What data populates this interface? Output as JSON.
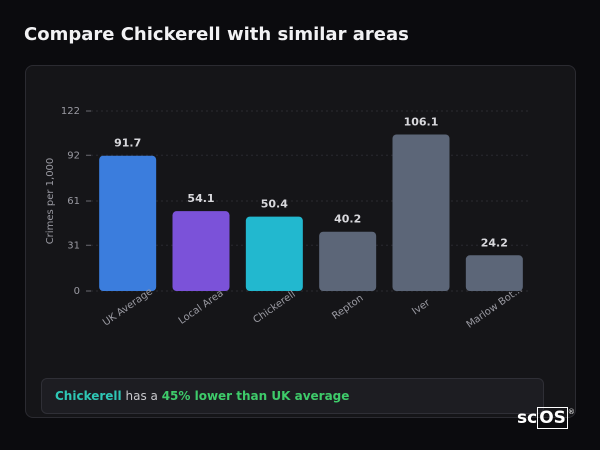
{
  "chart_data": {
    "type": "bar",
    "title": "Compare Chickerell with similar areas",
    "y_label": "Crimes per 1,000",
    "categories": [
      "UK Average",
      "Local Area",
      "Chickerell",
      "Repton",
      "Iver",
      "Marlow Bot..."
    ],
    "values": [
      91.7,
      54.1,
      50.4,
      40.2,
      106.1,
      24.2
    ],
    "colors": [
      "#3b7ddd",
      "#7b52d9",
      "#22b8cf",
      "#5c6678",
      "#5c6678",
      "#5c6678"
    ],
    "ylim": [
      0,
      122
    ],
    "yticks": [
      0,
      31,
      61,
      92,
      122
    ],
    "grid": true
  },
  "insight": {
    "area": "Chickerell",
    "middle": "has a",
    "highlight": "45% lower than UK average"
  },
  "logo": {
    "left": "sc",
    "boxed": "OS",
    "mark": "®"
  }
}
